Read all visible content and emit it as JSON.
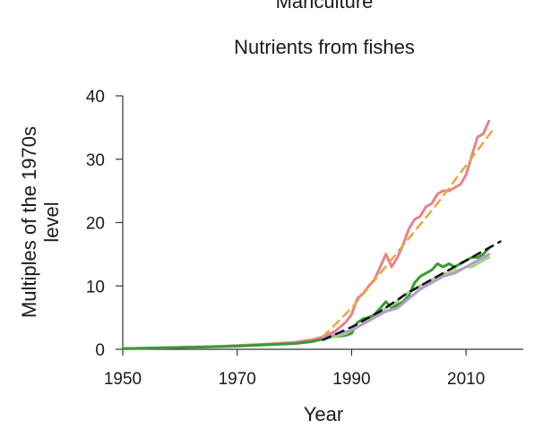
{
  "chart_data": {
    "type": "line",
    "top_label": "Mariculture",
    "title": "Nutrients from fishes",
    "xlabel": "Year",
    "ylabel": "Multiples of the 1970s level",
    "xlim": [
      1950,
      2020
    ],
    "ylim": [
      0,
      40
    ],
    "xticks": [
      1950,
      1970,
      1990,
      2010
    ],
    "yticks": [
      0,
      10,
      20,
      30,
      40
    ],
    "grid": false,
    "legend": "none",
    "series": [
      {
        "color": "#e8828a",
        "style": "solid",
        "x": [
          1950,
          1955,
          1960,
          1965,
          1970,
          1975,
          1980,
          1983,
          1985,
          1987,
          1988,
          1989,
          1990,
          1991,
          1992,
          1993,
          1994,
          1995,
          1996,
          1997,
          1998,
          1999,
          2000,
          2001,
          2002,
          2003,
          2004,
          2005,
          2006,
          2007,
          2008,
          2009,
          2010,
          2011,
          2012,
          2013,
          2014
        ],
        "y": [
          0.1,
          0.2,
          0.3,
          0.4,
          0.6,
          0.8,
          1.1,
          1.5,
          2.0,
          2.8,
          3.5,
          4.3,
          5.5,
          8.0,
          8.8,
          10.0,
          11.0,
          13.0,
          15.0,
          13.0,
          14.5,
          16.5,
          19.0,
          20.5,
          21.0,
          22.5,
          23.0,
          24.5,
          25.0,
          25.0,
          25.5,
          26.0,
          27.5,
          30.5,
          33.5,
          34.0,
          36.0
        ]
      },
      {
        "color": "#e6a840",
        "style": "dashed",
        "x": [
          1985,
          1990,
          1995,
          2000,
          2005,
          2010,
          2015
        ],
        "y": [
          2.0,
          6.5,
          12.0,
          17.5,
          23.0,
          29.0,
          35.0
        ]
      },
      {
        "color": "#3a9a32",
        "style": "solid",
        "x": [
          1950,
          1955,
          1960,
          1965,
          1970,
          1975,
          1980,
          1983,
          1985,
          1987,
          1989,
          1990,
          1991,
          1992,
          1993,
          1994,
          1995,
          1996,
          1997,
          1998,
          1999,
          2000,
          2001,
          2002,
          2003,
          2004,
          2005,
          2006,
          2007,
          2008,
          2009,
          2010,
          2011,
          2012,
          2013,
          2014
        ],
        "y": [
          0.1,
          0.2,
          0.3,
          0.4,
          0.5,
          0.7,
          0.9,
          1.2,
          1.6,
          2.0,
          2.2,
          2.5,
          4.2,
          4.8,
          5.0,
          5.5,
          6.5,
          7.5,
          6.5,
          7.0,
          7.5,
          8.5,
          10.5,
          11.5,
          12.0,
          12.5,
          13.5,
          13.0,
          13.5,
          13.0,
          13.5,
          14.0,
          14.5,
          14.5,
          15.0,
          16.0
        ]
      },
      {
        "color": "#9fd880",
        "style": "solid",
        "x": [
          1985,
          1987,
          1989,
          1990,
          1991,
          1992,
          1993,
          1994,
          1995,
          1996,
          1997,
          1998,
          1999,
          2000,
          2001,
          2002,
          2003,
          2004,
          2005,
          2006,
          2007,
          2008,
          2009,
          2010,
          2011,
          2012,
          2013,
          2014
        ],
        "y": [
          1.5,
          2.0,
          2.5,
          3.0,
          3.5,
          4.0,
          4.5,
          5.0,
          6.0,
          6.5,
          7.0,
          7.5,
          8.5,
          9.0,
          9.5,
          10.0,
          10.5,
          11.0,
          11.5,
          12.0,
          12.0,
          12.5,
          12.5,
          13.0,
          13.0,
          13.5,
          14.0,
          14.5
        ]
      },
      {
        "color": "#b599cf",
        "style": "solid",
        "x": [
          1985,
          1990,
          1992,
          1994,
          1996,
          1998,
          2000,
          2002,
          2004,
          2006,
          2008,
          2010,
          2012,
          2014
        ],
        "y": [
          1.8,
          3.0,
          4.0,
          5.0,
          6.0,
          6.5,
          8.0,
          9.5,
          10.5,
          11.5,
          12.0,
          13.0,
          14.0,
          15.0
        ]
      },
      {
        "color": "#111111",
        "style": "dashed",
        "x": [
          1985,
          1990,
          1995,
          2000,
          2005,
          2010,
          2016
        ],
        "y": [
          1.5,
          3.5,
          6.0,
          9.0,
          11.5,
          14.0,
          17.0
        ]
      }
    ]
  }
}
